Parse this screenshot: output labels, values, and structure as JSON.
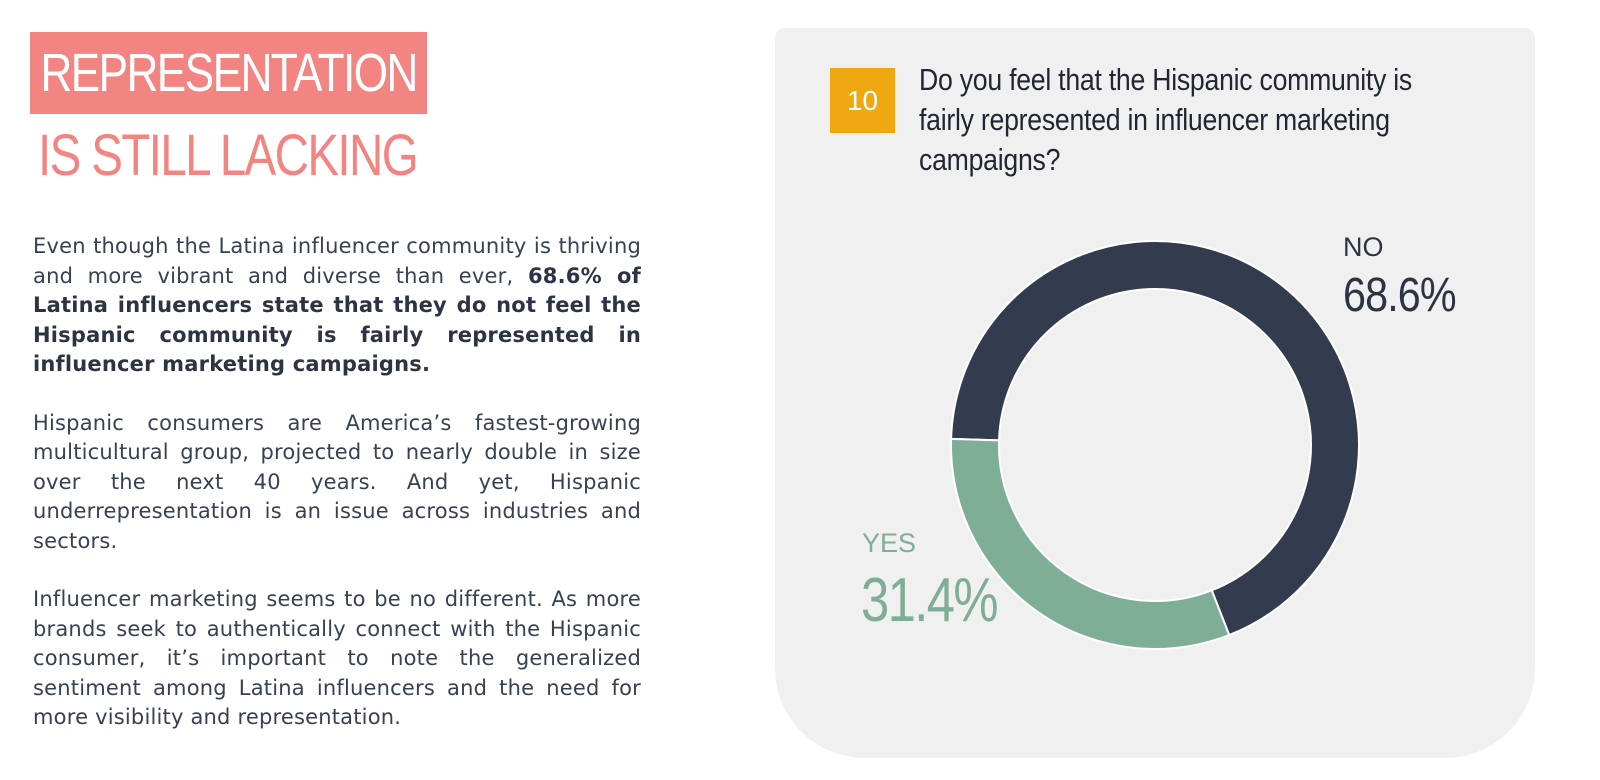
{
  "headline": {
    "line1": "REPRESENTATION",
    "line2": "IS STILL LACKING"
  },
  "body": {
    "p1_intro": "Even though the Latina influencer community is thriving and more vibrant and diverse than ever, ",
    "p1_bold": "68.6% of Latina influencers state that they do not feel the Hispanic community is fairly represented in influencer marketing campaigns.",
    "p2": "Hispanic consumers are America’s fastest-growing multicultural group, projected to nearly double in size over the next 40 years. And yet, Hispanic underrepresentation is an issue across industries and sectors.",
    "p3": "Influencer marketing seems to be no different. As more brands seek to authentically connect with the Hispanic consumer, it’s important to note the generalized sentiment among Latina influencers and the need for more visibility and representation."
  },
  "question": {
    "number": "10",
    "text": "Do you feel that the Hispanic community is fairly represented in influencer marketing campaigns?"
  },
  "colors": {
    "accent": "#f28482",
    "number_badge": "#f0a810",
    "no": "#323c4e",
    "yes": "#7fae96",
    "panel": "#f0f0f0"
  },
  "chart_data": {
    "type": "pie",
    "style": "donut",
    "labels": [
      "NO",
      "YES"
    ],
    "values": [
      68.6,
      31.4
    ],
    "value_labels": [
      "68.6%",
      "31.4%"
    ],
    "colors": [
      "#323c4e",
      "#7fae96"
    ]
  }
}
